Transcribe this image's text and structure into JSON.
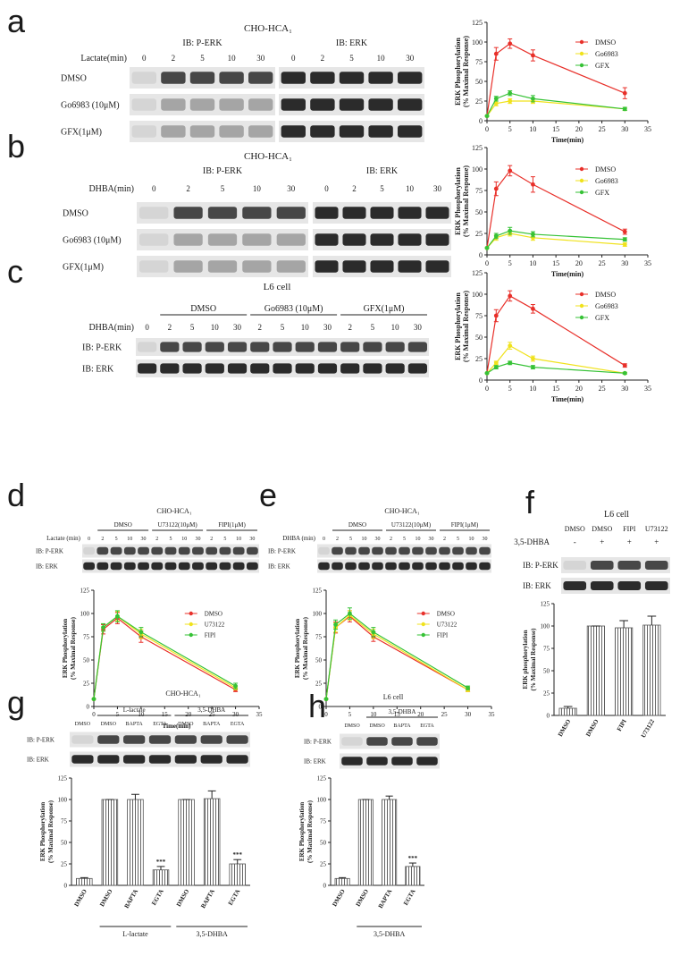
{
  "panels": [
    {
      "letter": "a",
      "title": "CHO-HCA₁",
      "headers": [
        "IB: P-ERK",
        "IB: ERK"
      ],
      "lane_label": "Lactate(min)",
      "lanes": [
        "0",
        "2",
        "5",
        "10",
        "30"
      ],
      "rows": [
        "DMSO",
        "Go6983 (10μM)",
        "GFX(1μM)"
      ]
    },
    {
      "letter": "b",
      "title": "CHO-HCA₁",
      "headers": [
        "IB: P-ERK",
        "IB: ERK"
      ],
      "lane_label": "DHBA(min)",
      "lanes": [
        "0",
        "2",
        "5",
        "10",
        "30"
      ],
      "rows": [
        "DMSO",
        "Go6983 (10μM)",
        "GFX(1μM)"
      ]
    },
    {
      "letter": "c",
      "title": "L6 cell",
      "groups": [
        "DMSO",
        "Go6983 (10μM)",
        "GFX(1μM)"
      ],
      "lane_label": "DHBA(min)",
      "lanes": [
        "0",
        "2",
        "5",
        "10",
        "30",
        "2",
        "5",
        "10",
        "30",
        "2",
        "5",
        "10",
        "30"
      ],
      "rows": [
        "IB: P-ERK",
        "IB: ERK"
      ]
    },
    {
      "letter": "d",
      "title": "CHO-HCA₁",
      "groups": [
        "DMSO",
        "U73122(10μM)",
        "FIPI(1μM)"
      ],
      "lane_label": "Lactate (min)",
      "lanes": [
        "0",
        "2",
        "5",
        "10",
        "30",
        "2",
        "5",
        "10",
        "30",
        "2",
        "5",
        "10",
        "30"
      ],
      "rows": [
        "IB: P-ERK",
        "IB: ERK"
      ]
    },
    {
      "letter": "e",
      "title": "CHO-HCA₁",
      "groups": [
        "DMSO",
        "U73122(10μM)",
        "FIPI(1μM)"
      ],
      "lane_label": "DHBA (min)",
      "lanes": [
        "0",
        "2",
        "5",
        "10",
        "30",
        "2",
        "5",
        "10",
        "30",
        "2",
        "5",
        "10",
        "30"
      ],
      "rows": [
        "IB: P-ERK",
        "IB: ERK"
      ]
    },
    {
      "letter": "f",
      "title": "L6 cell",
      "lanes": [
        "DMSO",
        "DMSO",
        "FIPI",
        "U73122"
      ],
      "lane_label": "3,5-DHBA",
      "signs": [
        "-",
        "+",
        "+",
        "+"
      ],
      "rows": [
        "IB: P-ERK",
        "IB: ERK"
      ]
    },
    {
      "letter": "g",
      "title": "CHO-HCA₁",
      "groups": [
        "L-lactate",
        "3,5-DHBA"
      ],
      "lanes": [
        "DMSO",
        "DMSO",
        "BAPTA",
        "EGTA",
        "DMSO",
        "BAPTA",
        "EGTA"
      ],
      "rows": [
        "IB: P-ERK",
        "IB: ERK"
      ]
    },
    {
      "letter": "h",
      "title": "L6 cell",
      "groups": [
        "3,5-DHBA"
      ],
      "lanes": [
        "DMSO",
        "DMSO",
        "BAPTA",
        "EGTA"
      ],
      "rows": [
        "IB: P-ERK",
        "IB: ERK"
      ]
    }
  ],
  "chart_data": [
    {
      "type": "line",
      "x": [
        0,
        2,
        5,
        10,
        30
      ],
      "xlim": [
        0,
        35
      ],
      "xticks": [
        0,
        5,
        10,
        15,
        20,
        25,
        30,
        35
      ],
      "ylim": [
        0,
        125
      ],
      "yticks": [
        0,
        25,
        50,
        75,
        100,
        125
      ],
      "xlabel": "Time(min)",
      "ylabel": [
        "ERK Phosphorylation",
        "(% Maximal Response)"
      ],
      "legend": "upper right",
      "series": [
        {
          "name": "DMSO",
          "color": "#e8302a",
          "values": [
            6,
            85,
            98,
            83,
            35
          ],
          "errors": [
            0,
            8,
            6,
            7,
            7
          ]
        },
        {
          "name": "Go6983",
          "color": "#f0e21c",
          "values": [
            6,
            22,
            25,
            25,
            15
          ],
          "errors": [
            0,
            3,
            3,
            3,
            2
          ]
        },
        {
          "name": "GFX",
          "color": "#36c236",
          "values": [
            6,
            28,
            35,
            28,
            15
          ],
          "errors": [
            0,
            3,
            3,
            4,
            2
          ]
        }
      ]
    },
    {
      "type": "line",
      "x": [
        0,
        2,
        5,
        10,
        30
      ],
      "xlim": [
        0,
        35
      ],
      "xticks": [
        0,
        5,
        10,
        15,
        20,
        25,
        30,
        35
      ],
      "ylim": [
        0,
        125
      ],
      "yticks": [
        0,
        25,
        50,
        75,
        100,
        125
      ],
      "xlabel": "Time(min)",
      "ylabel": [
        "ERK Phosphorylation",
        "(% Maximal Response)"
      ],
      "legend": "upper right",
      "series": [
        {
          "name": "DMSO",
          "color": "#e8302a",
          "values": [
            8,
            77,
            98,
            82,
            27
          ],
          "errors": [
            0,
            8,
            6,
            9,
            3
          ]
        },
        {
          "name": "Go6983",
          "color": "#f0e21c",
          "values": [
            8,
            20,
            25,
            20,
            12
          ],
          "errors": [
            0,
            3,
            3,
            3,
            2
          ]
        },
        {
          "name": "GFX",
          "color": "#36c236",
          "values": [
            8,
            22,
            28,
            24,
            18
          ],
          "errors": [
            0,
            3,
            4,
            3,
            2
          ]
        }
      ]
    },
    {
      "type": "line",
      "x": [
        0,
        2,
        5,
        10,
        30
      ],
      "xlim": [
        0,
        35
      ],
      "xticks": [
        0,
        5,
        10,
        15,
        20,
        25,
        30,
        35
      ],
      "ylim": [
        0,
        125
      ],
      "yticks": [
        0,
        25,
        50,
        75,
        100,
        125
      ],
      "xlabel": "Time(min)",
      "ylabel": [
        "ERK Phosphorylation",
        "(% Maximal Response)"
      ],
      "legend": "upper right",
      "series": [
        {
          "name": "DMSO",
          "color": "#e8302a",
          "values": [
            8,
            75,
            98,
            83,
            17
          ],
          "errors": [
            0,
            7,
            6,
            5,
            2
          ]
        },
        {
          "name": "Go6983",
          "color": "#f0e21c",
          "values": [
            8,
            20,
            40,
            25,
            8
          ],
          "errors": [
            0,
            2,
            4,
            3,
            1
          ]
        },
        {
          "name": "GFX",
          "color": "#36c236",
          "values": [
            8,
            15,
            20,
            15,
            8
          ],
          "errors": [
            0,
            2,
            2,
            2,
            1
          ]
        }
      ]
    },
    {
      "type": "line",
      "x": [
        0,
        2,
        5,
        10,
        30
      ],
      "xlim": [
        0,
        35
      ],
      "xticks": [
        0,
        5,
        10,
        15,
        20,
        25,
        30,
        35
      ],
      "ylim": [
        0,
        125
      ],
      "yticks": [
        0,
        25,
        50,
        75,
        100,
        125
      ],
      "xlabel": "Time(min)",
      "ylabel": [
        "ERK Phosphorylation",
        "(% Maximal Response)"
      ],
      "legend": "upper right",
      "series": [
        {
          "name": "DMSO",
          "color": "#e8302a",
          "values": [
            8,
            83,
            95,
            75,
            18
          ],
          "errors": [
            0,
            5,
            6,
            6,
            2
          ]
        },
        {
          "name": "U73122",
          "color": "#f0e21c",
          "values": [
            8,
            85,
            97,
            78,
            20
          ],
          "errors": [
            0,
            4,
            5,
            5,
            2
          ]
        },
        {
          "name": "FIPI",
          "color": "#36c236",
          "values": [
            8,
            85,
            97,
            80,
            22
          ],
          "errors": [
            0,
            4,
            6,
            5,
            3
          ]
        }
      ]
    },
    {
      "type": "line",
      "x": [
        0,
        2,
        5,
        10,
        30
      ],
      "xlim": [
        0,
        35
      ],
      "xticks": [
        0,
        5,
        10,
        15,
        20,
        25,
        30,
        35
      ],
      "ylim": [
        0,
        125
      ],
      "yticks": [
        0,
        25,
        50,
        75,
        100,
        125
      ],
      "ylabel": [
        "ERK Phosphorylation",
        "(% Maximal Response)"
      ],
      "legend": "upper right",
      "series": [
        {
          "name": "DMSO",
          "color": "#e8302a",
          "values": [
            8,
            85,
            97,
            75,
            18
          ],
          "errors": [
            0,
            6,
            6,
            5,
            2
          ]
        },
        {
          "name": "U73122",
          "color": "#f0e21c",
          "values": [
            8,
            85,
            98,
            78,
            18
          ],
          "errors": [
            0,
            5,
            5,
            5,
            2
          ]
        },
        {
          "name": "FIPI",
          "color": "#36c236",
          "values": [
            8,
            88,
            100,
            80,
            20
          ],
          "errors": [
            0,
            5,
            6,
            5,
            2
          ]
        }
      ]
    },
    {
      "type": "bar",
      "categories": [
        "DMSO",
        "DMSO",
        "FIPI",
        "U73122"
      ],
      "values": [
        8,
        100,
        98,
        101
      ],
      "errors": [
        2,
        0,
        8,
        10
      ],
      "color": "#555555",
      "ylim": [
        0,
        125
      ],
      "yticks": [
        0,
        25,
        50,
        75,
        100,
        125
      ],
      "ylabel": [
        "ERK phosphorylation",
        "(% Maximal Response)"
      ]
    },
    {
      "type": "bar",
      "categories": [
        "DMSO",
        "DMSO",
        "BAPTA",
        "EGTA",
        "DMSO",
        "BAPTA",
        "EGTA"
      ],
      "values": [
        8,
        100,
        100,
        18,
        100,
        101,
        25
      ],
      "errors": [
        1,
        0,
        6,
        4,
        0,
        9,
        5
      ],
      "color": "#555555",
      "significance": [
        null,
        null,
        null,
        "***",
        null,
        null,
        "***"
      ],
      "groups": [
        "L-lactate",
        "3,5-DHBA"
      ],
      "ylim": [
        0,
        125
      ],
      "yticks": [
        0,
        25,
        50,
        75,
        100,
        125
      ],
      "ylabel": [
        "ERK Phosphorylation",
        "(% Maximal Response)"
      ]
    },
    {
      "type": "bar",
      "categories": [
        "DMSO",
        "DMSO",
        "BAPTA",
        "EGTA"
      ],
      "values": [
        8,
        100,
        100,
        22
      ],
      "errors": [
        1,
        0,
        4,
        4
      ],
      "color": "#555555",
      "significance": [
        null,
        null,
        null,
        "***"
      ],
      "groups": [
        "3,5-DHBA"
      ],
      "ylim": [
        0,
        125
      ],
      "yticks": [
        0,
        25,
        50,
        75,
        100,
        125
      ],
      "ylabel": [
        "ERK Phosphorylation",
        "(% Maximal Response)"
      ]
    }
  ]
}
